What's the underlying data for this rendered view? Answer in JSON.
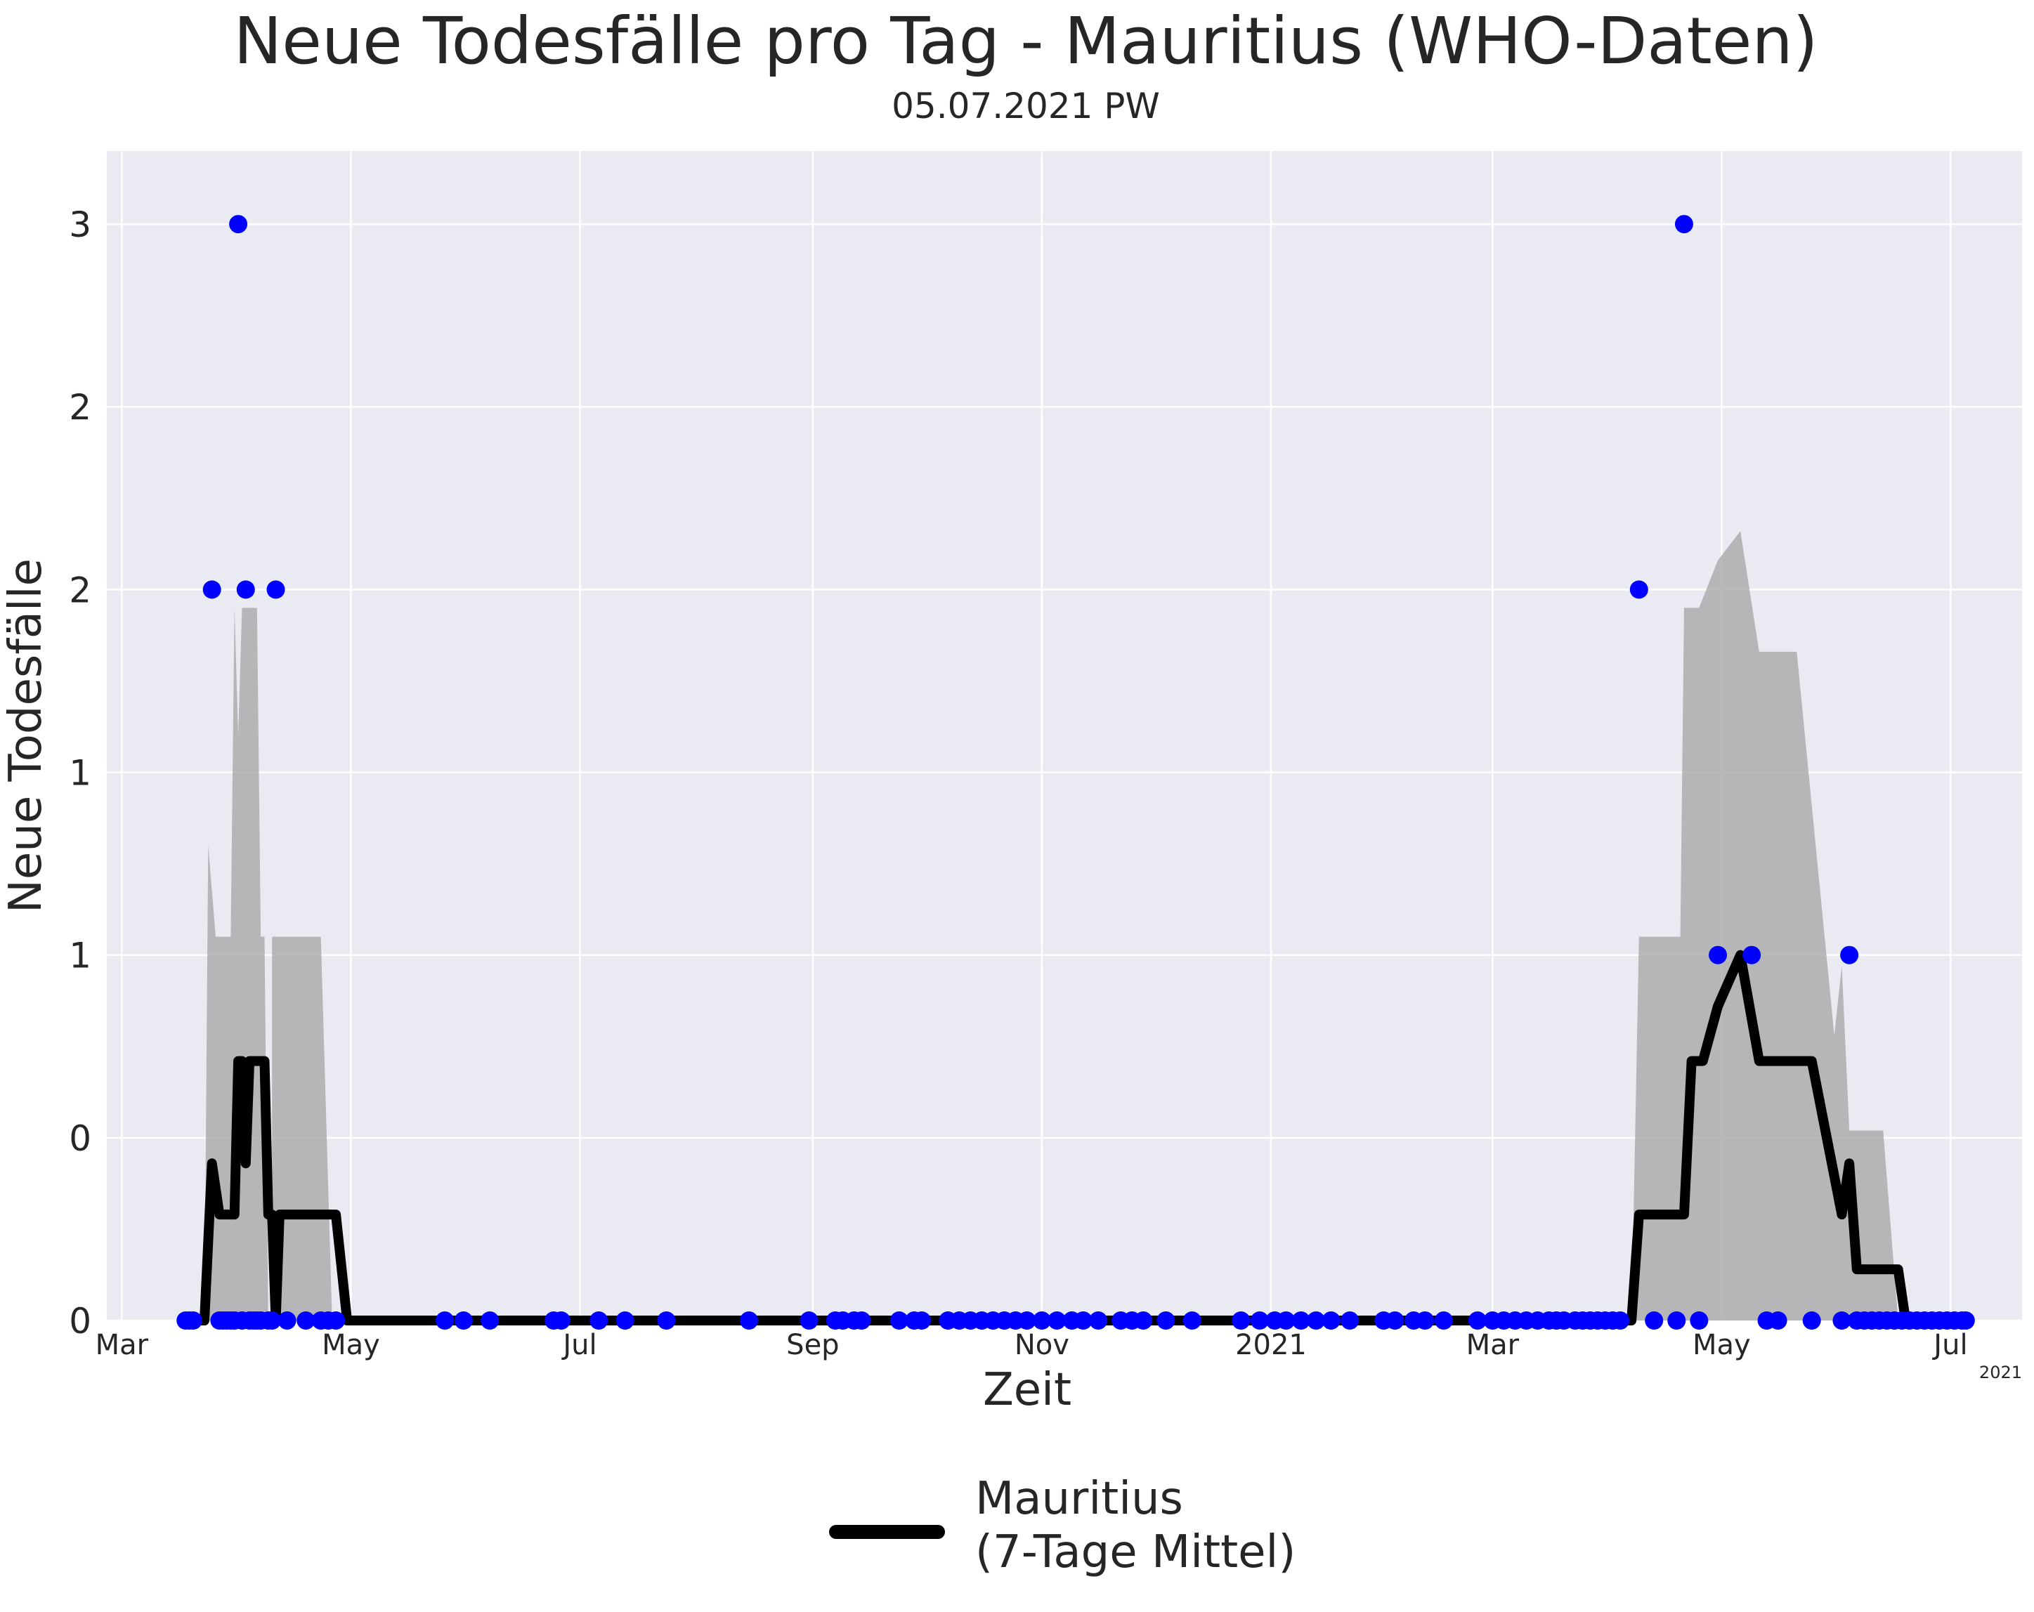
{
  "chart_data": {
    "type": "line",
    "title": "Neue Todesfälle pro Tag - Mauritius (WHO-Daten)",
    "subtitle": "05.07.2021 PW",
    "xlabel": "Zeit",
    "ylabel": "Neue Todesfälle",
    "x_offset_label": "2021",
    "xlim": [
      "2020-02-26",
      "2021-07-20"
    ],
    "ylim": [
      0,
      3.2
    ],
    "grid": true,
    "legend_position": "bottom-center",
    "colors": {
      "background": "#eaeaf2",
      "grid": "#ffffff",
      "line": "#000000",
      "points": "#0000ff",
      "band": "#a9a9a9"
    },
    "x_ticks": [
      {
        "date": "2020-03-01",
        "label": "Mar"
      },
      {
        "date": "2020-05-01",
        "label": "May"
      },
      {
        "date": "2020-07-01",
        "label": "Jul"
      },
      {
        "date": "2020-09-01",
        "label": "Sep"
      },
      {
        "date": "2020-11-01",
        "label": "Nov"
      },
      {
        "date": "2021-01-01",
        "label": "2021"
      },
      {
        "date": "2021-03-01",
        "label": "Mar"
      },
      {
        "date": "2021-05-01",
        "label": "May"
      },
      {
        "date": "2021-07-01",
        "label": "Jul"
      }
    ],
    "y_ticks": [
      {
        "value": 0,
        "label": "0"
      },
      {
        "value": 0.5,
        "label": "0"
      },
      {
        "value": 1,
        "label": "1"
      },
      {
        "value": 1.5,
        "label": "1"
      },
      {
        "value": 2,
        "label": "2"
      },
      {
        "value": 2.5,
        "label": "2"
      },
      {
        "value": 3,
        "label": "3"
      }
    ],
    "series": [
      {
        "name": "Mauritius\n(7-Tage Mittel)",
        "kind": "line",
        "points": [
          [
            "2020-03-18",
            0
          ],
          [
            "2020-03-23",
            0
          ],
          [
            "2020-03-25",
            0.43
          ],
          [
            "2020-03-27",
            0.29
          ],
          [
            "2020-03-31",
            0.29
          ],
          [
            "2020-04-01",
            0.71
          ],
          [
            "2020-04-02",
            0.71
          ],
          [
            "2020-04-03",
            0.43
          ],
          [
            "2020-04-04",
            0.71
          ],
          [
            "2020-04-08",
            0.71
          ],
          [
            "2020-04-09",
            0.29
          ],
          [
            "2020-04-10",
            0.29
          ],
          [
            "2020-04-11",
            0
          ],
          [
            "2020-04-12",
            0.29
          ],
          [
            "2020-04-27",
            0.29
          ],
          [
            "2020-04-30",
            0
          ],
          [
            "2021-04-07",
            0
          ],
          [
            "2021-04-09",
            0.29
          ],
          [
            "2021-04-21",
            0.29
          ],
          [
            "2021-04-23",
            0.71
          ],
          [
            "2021-04-26",
            0.71
          ],
          [
            "2021-04-30",
            0.86
          ],
          [
            "2021-05-06",
            1
          ],
          [
            "2021-05-11",
            0.71
          ],
          [
            "2021-05-25",
            0.71
          ],
          [
            "2021-06-02",
            0.29
          ],
          [
            "2021-06-04",
            0.43
          ],
          [
            "2021-06-06",
            0.14
          ],
          [
            "2021-06-17",
            0.14
          ],
          [
            "2021-06-19",
            0
          ],
          [
            "2021-07-05",
            0
          ]
        ]
      },
      {
        "name": "",
        "kind": "band",
        "points": [
          [
            "2020-03-23",
            0,
            0
          ],
          [
            "2020-03-24",
            0,
            1.3
          ],
          [
            "2020-03-26",
            0,
            1.05
          ],
          [
            "2020-03-30",
            0,
            1.05
          ],
          [
            "2020-03-31",
            0,
            1.95
          ],
          [
            "2020-04-01",
            0,
            1.6
          ],
          [
            "2020-04-02",
            0,
            1.95
          ],
          [
            "2020-04-06",
            0,
            1.95
          ],
          [
            "2020-04-07",
            0,
            1.05
          ],
          [
            "2020-04-08",
            0,
            1.05
          ],
          [
            "2020-04-09",
            0,
            0
          ],
          [
            "2020-04-10",
            0,
            1.05
          ],
          [
            "2020-04-23",
            0,
            1.05
          ],
          [
            "2020-04-26",
            0,
            0
          ],
          [
            "2021-04-07",
            0,
            0
          ],
          [
            "2021-04-09",
            0,
            1.05
          ],
          [
            "2021-04-20",
            0,
            1.05
          ],
          [
            "2021-04-21",
            0,
            1.95
          ],
          [
            "2021-04-25",
            0,
            1.95
          ],
          [
            "2021-04-30",
            0,
            2.08
          ],
          [
            "2021-05-06",
            0,
            2.16
          ],
          [
            "2021-05-11",
            0,
            1.83
          ],
          [
            "2021-05-21",
            0,
            1.83
          ],
          [
            "2021-05-31",
            0,
            0.78
          ],
          [
            "2021-06-02",
            0,
            0.97
          ],
          [
            "2021-06-04",
            0,
            0.52
          ],
          [
            "2021-06-13",
            0,
            0.52
          ],
          [
            "2021-06-17",
            0,
            0
          ]
        ]
      },
      {
        "name": "",
        "kind": "scatter",
        "points": [
          [
            "2020-03-18",
            0
          ],
          [
            "2020-03-19",
            0
          ],
          [
            "2020-03-20",
            0
          ],
          [
            "2020-03-25",
            2
          ],
          [
            "2020-03-27",
            0
          ],
          [
            "2020-03-28",
            0
          ],
          [
            "2020-03-29",
            0
          ],
          [
            "2020-03-30",
            0
          ],
          [
            "2020-03-31",
            0
          ],
          [
            "2020-04-01",
            3
          ],
          [
            "2020-04-02",
            0
          ],
          [
            "2020-04-03",
            2
          ],
          [
            "2020-04-04",
            0
          ],
          [
            "2020-04-05",
            0
          ],
          [
            "2020-04-06",
            0
          ],
          [
            "2020-04-07",
            0
          ],
          [
            "2020-04-09",
            0
          ],
          [
            "2020-04-10",
            0
          ],
          [
            "2020-04-11",
            2
          ],
          [
            "2020-04-14",
            0
          ],
          [
            "2020-04-19",
            0
          ],
          [
            "2020-04-23",
            0
          ],
          [
            "2020-04-25",
            0
          ],
          [
            "2020-04-27",
            0
          ],
          [
            "2020-05-26",
            0
          ],
          [
            "2020-05-31",
            0
          ],
          [
            "2020-06-07",
            0
          ],
          [
            "2020-06-24",
            0
          ],
          [
            "2020-06-26",
            0
          ],
          [
            "2020-07-06",
            0
          ],
          [
            "2020-07-13",
            0
          ],
          [
            "2020-07-24",
            0
          ],
          [
            "2020-08-15",
            0
          ],
          [
            "2020-08-31",
            0
          ],
          [
            "2020-09-07",
            0
          ],
          [
            "2020-09-09",
            0
          ],
          [
            "2020-09-12",
            0
          ],
          [
            "2020-09-14",
            0
          ],
          [
            "2020-09-24",
            0
          ],
          [
            "2020-09-28",
            0
          ],
          [
            "2020-09-30",
            0
          ],
          [
            "2020-10-07",
            0
          ],
          [
            "2020-10-10",
            0
          ],
          [
            "2020-10-13",
            0
          ],
          [
            "2020-10-16",
            0
          ],
          [
            "2020-10-19",
            0
          ],
          [
            "2020-10-22",
            0
          ],
          [
            "2020-10-25",
            0
          ],
          [
            "2020-10-28",
            0
          ],
          [
            "2020-11-01",
            0
          ],
          [
            "2020-11-05",
            0
          ],
          [
            "2020-11-09",
            0
          ],
          [
            "2020-11-12",
            0
          ],
          [
            "2020-11-16",
            0
          ],
          [
            "2020-11-22",
            0
          ],
          [
            "2020-11-25",
            0
          ],
          [
            "2020-11-28",
            0
          ],
          [
            "2020-12-04",
            0
          ],
          [
            "2020-12-11",
            0
          ],
          [
            "2020-12-24",
            0
          ],
          [
            "2020-12-29",
            0
          ],
          [
            "2021-01-02",
            0
          ],
          [
            "2021-01-05",
            0
          ],
          [
            "2021-01-09",
            0
          ],
          [
            "2021-01-13",
            0
          ],
          [
            "2021-01-17",
            0
          ],
          [
            "2021-01-22",
            0
          ],
          [
            "2021-01-31",
            0
          ],
          [
            "2021-02-03",
            0
          ],
          [
            "2021-02-08",
            0
          ],
          [
            "2021-02-11",
            0
          ],
          [
            "2021-02-16",
            0
          ],
          [
            "2021-02-25",
            0
          ],
          [
            "2021-03-01",
            0
          ],
          [
            "2021-03-04",
            0
          ],
          [
            "2021-03-07",
            0
          ],
          [
            "2021-03-10",
            0
          ],
          [
            "2021-03-13",
            0
          ],
          [
            "2021-03-16",
            0
          ],
          [
            "2021-03-18",
            0
          ],
          [
            "2021-03-20",
            0
          ],
          [
            "2021-03-23",
            0
          ],
          [
            "2021-03-25",
            0
          ],
          [
            "2021-03-27",
            0
          ],
          [
            "2021-03-29",
            0
          ],
          [
            "2021-03-31",
            0
          ],
          [
            "2021-04-02",
            0
          ],
          [
            "2021-04-04",
            0
          ],
          [
            "2021-04-09",
            2
          ],
          [
            "2021-04-13",
            0
          ],
          [
            "2021-04-19",
            0
          ],
          [
            "2021-04-21",
            3
          ],
          [
            "2021-04-25",
            0
          ],
          [
            "2021-04-30",
            1
          ],
          [
            "2021-05-09",
            1
          ],
          [
            "2021-05-13",
            0
          ],
          [
            "2021-05-16",
            0
          ],
          [
            "2021-05-25",
            0
          ],
          [
            "2021-06-02",
            0
          ],
          [
            "2021-06-04",
            1
          ],
          [
            "2021-06-06",
            0
          ],
          [
            "2021-06-08",
            0
          ],
          [
            "2021-06-10",
            0
          ],
          [
            "2021-06-12",
            0
          ],
          [
            "2021-06-14",
            0
          ],
          [
            "2021-06-16",
            0
          ],
          [
            "2021-06-18",
            0
          ],
          [
            "2021-06-20",
            0
          ],
          [
            "2021-06-22",
            0
          ],
          [
            "2021-06-24",
            0
          ],
          [
            "2021-06-26",
            0
          ],
          [
            "2021-06-28",
            0
          ],
          [
            "2021-06-30",
            0
          ],
          [
            "2021-07-02",
            0
          ],
          [
            "2021-07-04",
            0
          ],
          [
            "2021-07-05",
            0
          ]
        ]
      }
    ]
  }
}
